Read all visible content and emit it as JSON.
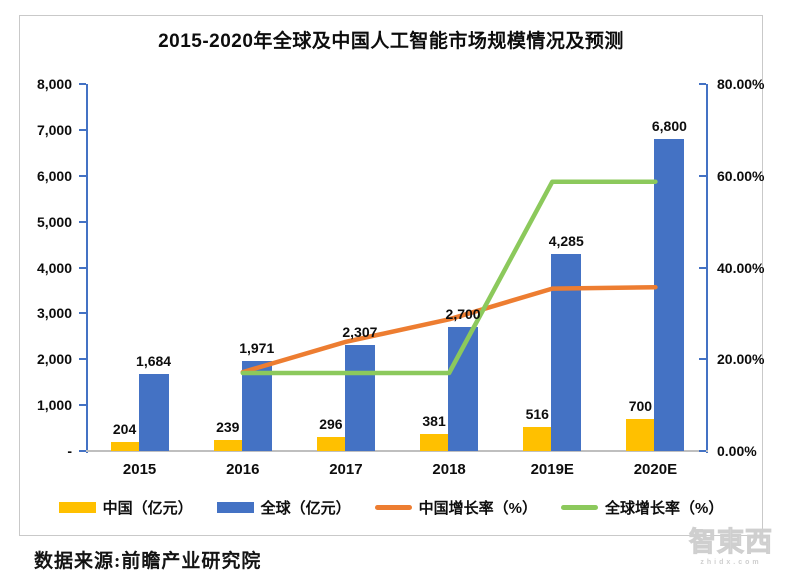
{
  "page": {
    "title": "2015-2020年全球及中国人工智能市场规模情况及预测",
    "source_note": "数据来源:前瞻产业研究院",
    "watermark": {
      "brand": "智東西",
      "domain": "zhidx.com"
    }
  },
  "chart_data": {
    "type": "combo-bar-line",
    "title": "2015-2020年全球及中国人工智能市场规模情况及预测",
    "categories": [
      "2015",
      "2016",
      "2017",
      "2018",
      "2019E",
      "2020E"
    ],
    "bar_series": [
      {
        "name": "中国（亿元）",
        "color": "#FFC000",
        "axis": "left",
        "values": [
          204,
          239,
          296,
          381,
          516,
          700
        ],
        "labels": [
          "204",
          "239",
          "296",
          "381",
          "516",
          "700"
        ]
      },
      {
        "name": "全球（亿元）",
        "color": "#4472C4",
        "axis": "left",
        "values": [
          1684,
          1971,
          2307,
          2700,
          4285,
          6800
        ],
        "labels": [
          "1,684",
          "1,971",
          "2,307",
          "2,700",
          "4,285",
          "6,800"
        ]
      }
    ],
    "line_series": [
      {
        "name": "中国增长率（%）",
        "color": "#ED7D31",
        "axis": "right",
        "values": [
          null,
          17.2,
          23.8,
          28.7,
          35.4,
          35.7
        ]
      },
      {
        "name": "全球增长率（%）",
        "color": "#8CC95C",
        "axis": "right",
        "values": [
          null,
          17.0,
          17.0,
          17.0,
          58.7,
          58.7
        ]
      }
    ],
    "left_axis": {
      "min": 0,
      "max": 8000,
      "tick_step": 1000,
      "tick_labels": [
        "8,000",
        "7,000",
        "6,000",
        "5,000",
        "4,000",
        "3,000",
        "2,000",
        "1,000",
        "-"
      ],
      "color": "#4472C4"
    },
    "right_axis": {
      "min": 0,
      "max": 80,
      "tick_step": 20,
      "tick_labels": [
        "80.00%",
        "60.00%",
        "40.00%",
        "20.00%",
        "0.00%"
      ],
      "color": "#4472C4"
    },
    "legend_position": "bottom",
    "grid": false
  }
}
